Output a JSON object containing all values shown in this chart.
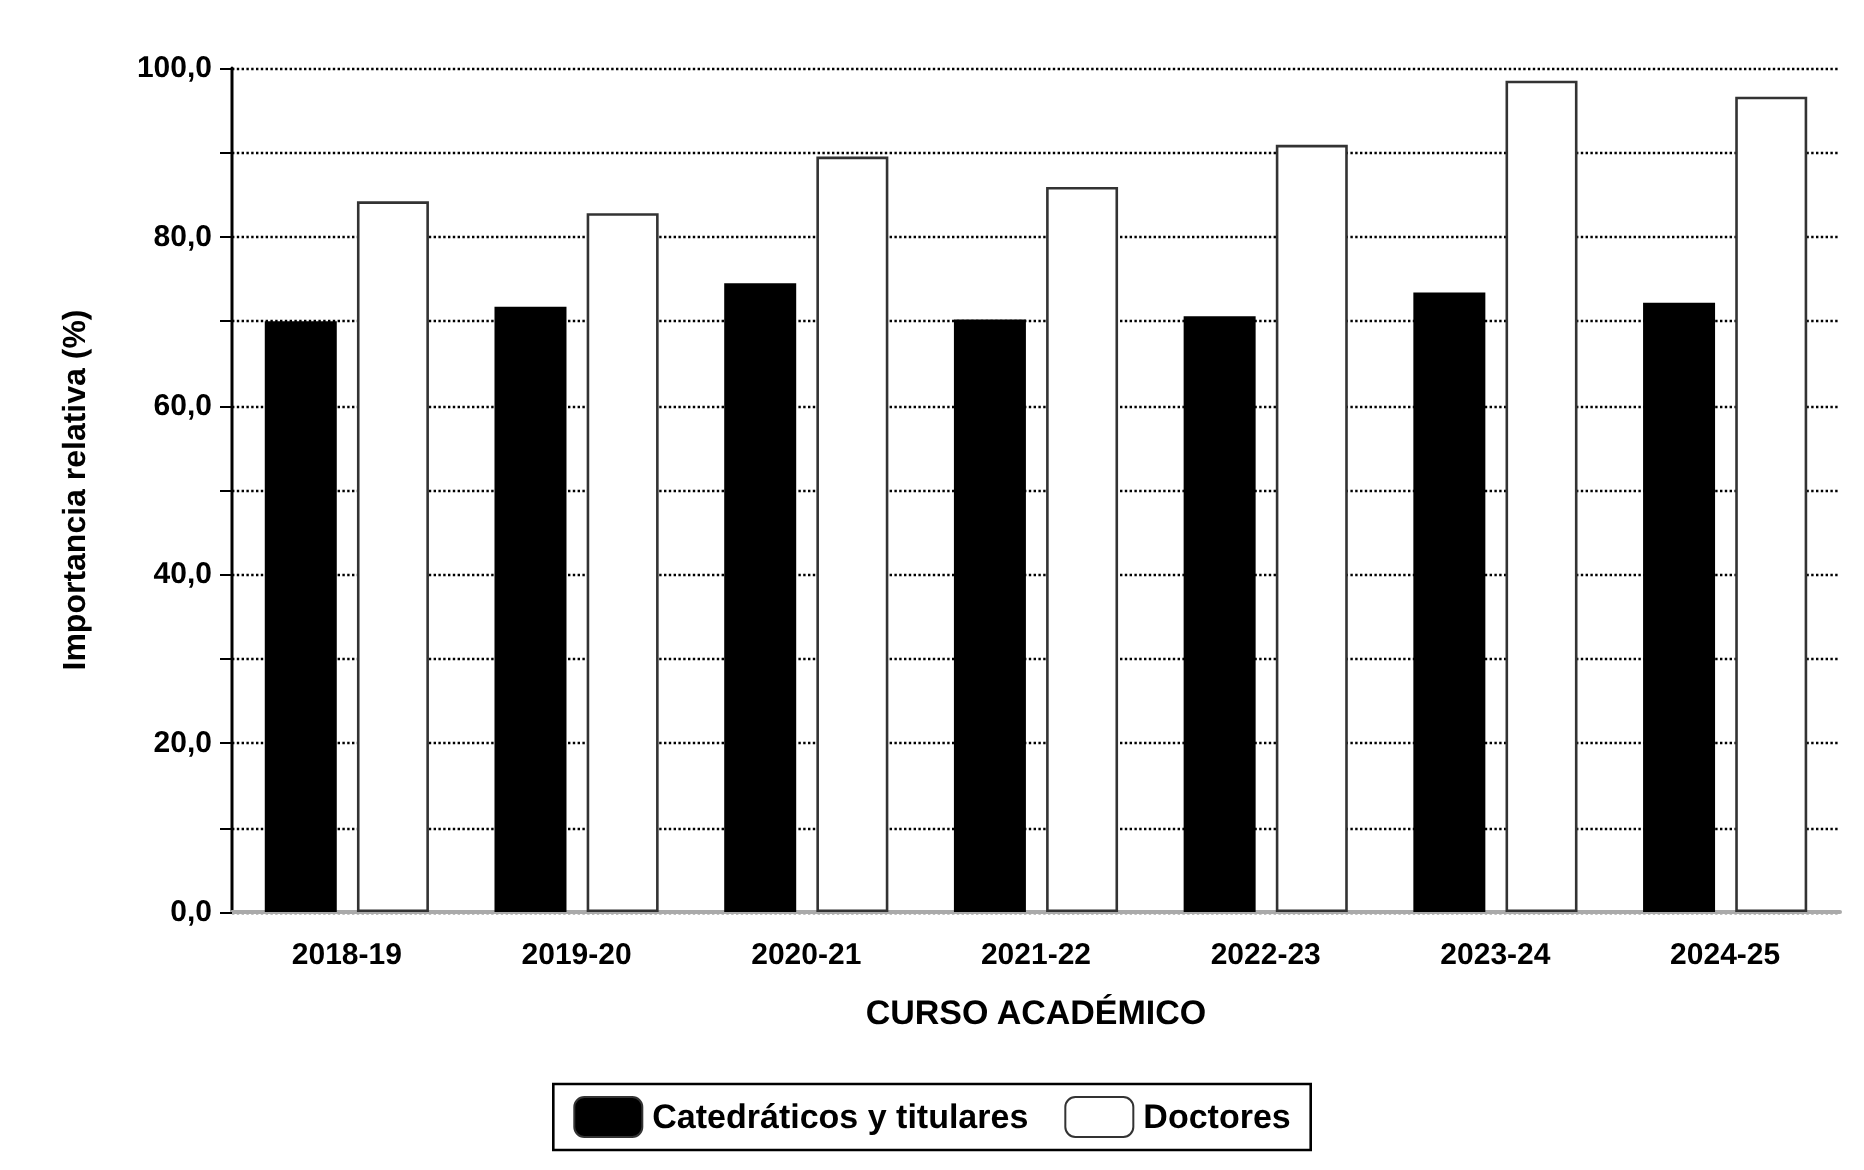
{
  "chart_data": {
    "type": "bar",
    "xlabel": "CURSO ACADÉMICO",
    "ylabel": "Importancia relativa (%)",
    "categories": [
      "2018-19",
      "2019-20",
      "2020-21",
      "2021-22",
      "2022-23",
      "2023-24",
      "2024-25"
    ],
    "series": [
      {
        "name": "Catedráticos y titulares",
        "color": "#000000",
        "values": [
          70.0,
          71.7,
          74.5,
          70.2,
          70.6,
          73.4,
          72.2
        ]
      },
      {
        "name": "Doctores",
        "color": "#ffffff",
        "values": [
          84.2,
          82.8,
          89.5,
          85.9,
          90.9,
          98.5,
          96.6
        ]
      }
    ],
    "ylim": [
      0,
      100
    ],
    "yticks": [
      {
        "value": 0,
        "label": "0,0"
      },
      {
        "value": 10,
        "label": null
      },
      {
        "value": 20,
        "label": "20,0"
      },
      {
        "value": 30,
        "label": null
      },
      {
        "value": 40,
        "label": "40,0"
      },
      {
        "value": 50,
        "label": null
      },
      {
        "value": 60,
        "label": "60,0"
      },
      {
        "value": 70,
        "label": null
      },
      {
        "value": 80,
        "label": "80,0"
      },
      {
        "value": 90,
        "label": null
      },
      {
        "value": 100,
        "label": "100,0"
      }
    ],
    "grid": "y",
    "legend": "bottom"
  }
}
